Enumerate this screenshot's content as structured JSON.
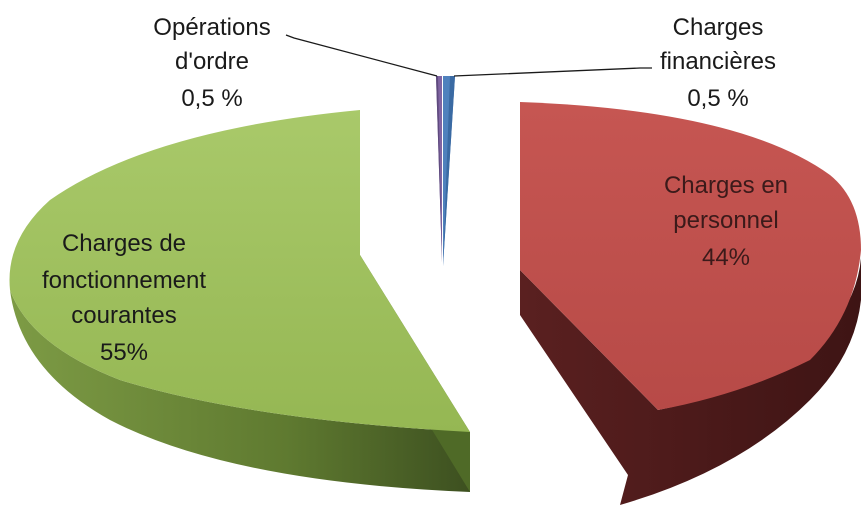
{
  "chart_data": {
    "type": "pie",
    "title": "",
    "exploded": true,
    "style": "3d",
    "categories": [
      "Charges en personnel",
      "Charges de fonctionnement courantes",
      "Opérations d'ordre",
      "Charges financières"
    ],
    "values": [
      44,
      55,
      0.5,
      0.5
    ],
    "colors": [
      "#c0504d",
      "#9bbb59",
      "#8064a2",
      "#4f81bd"
    ],
    "labels": [
      {
        "lines": [
          "Charges en",
          "personnel"
        ],
        "value": "44%"
      },
      {
        "lines": [
          "Charges de",
          "fonctionnement",
          "courantes"
        ],
        "value": "55%"
      },
      {
        "lines": [
          "Opérations",
          "d'ordre"
        ],
        "value": "0,5 %"
      },
      {
        "lines": [
          "Charges",
          "financières"
        ],
        "value": "0,5 %"
      }
    ]
  }
}
